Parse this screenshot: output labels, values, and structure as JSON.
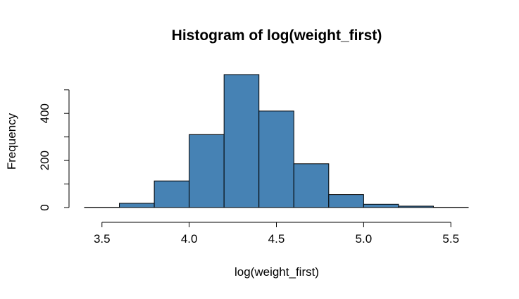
{
  "chart_data": {
    "type": "bar",
    "title": "Histogram of log(weight_first)",
    "xlabel": "log(weight_first)",
    "ylabel": "Frequency",
    "bins": [
      {
        "from": 3.4,
        "to": 3.6,
        "count": 1
      },
      {
        "from": 3.6,
        "to": 3.8,
        "count": 18
      },
      {
        "from": 3.8,
        "to": 4.0,
        "count": 113
      },
      {
        "from": 4.0,
        "to": 4.2,
        "count": 310
      },
      {
        "from": 4.2,
        "to": 4.4,
        "count": 565
      },
      {
        "from": 4.4,
        "to": 4.6,
        "count": 410
      },
      {
        "from": 4.6,
        "to": 4.8,
        "count": 186
      },
      {
        "from": 4.8,
        "to": 5.0,
        "count": 55
      },
      {
        "from": 5.0,
        "to": 5.2,
        "count": 14
      },
      {
        "from": 5.2,
        "to": 5.4,
        "count": 6
      },
      {
        "from": 5.4,
        "to": 5.6,
        "count": 1
      }
    ],
    "xlim": [
      3.4,
      5.6
    ],
    "ylim": [
      0,
      565
    ],
    "x_ticks": [
      3.5,
      4.0,
      4.5,
      5.0,
      5.5
    ],
    "x_tick_labels": [
      "3.5",
      "4.0",
      "4.5",
      "5.0",
      "5.5"
    ],
    "y_ticks": [
      0,
      100,
      200,
      300,
      400,
      500
    ],
    "y_tick_labels": [
      "0",
      "",
      "200",
      "",
      "400",
      ""
    ],
    "bar_color": "#4682b4",
    "grid": false,
    "legend": "none"
  }
}
